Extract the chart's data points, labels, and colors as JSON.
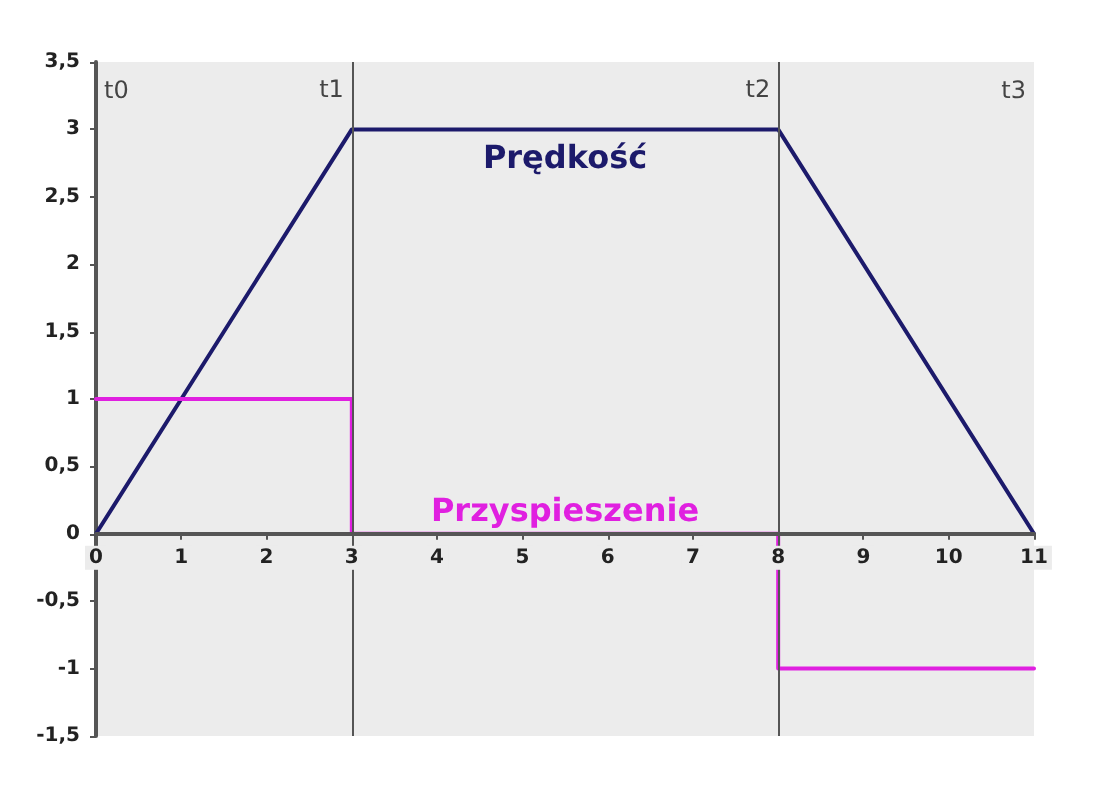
{
  "chart_data": {
    "type": "line",
    "series": [
      {
        "name": "Prędkość",
        "color": "#1c1a6b",
        "x": [
          0,
          3,
          8,
          11
        ],
        "values": [
          0,
          3,
          3,
          0
        ]
      },
      {
        "name": "Przyspieszenie",
        "type": "step",
        "color": "#e020e0",
        "x": [
          0,
          3,
          8,
          11
        ],
        "values": [
          1,
          0,
          -1,
          -1
        ]
      }
    ],
    "xlim": [
      0,
      11
    ],
    "xticks": [
      0,
      1,
      2,
      3,
      4,
      5,
      6,
      7,
      8,
      9,
      10,
      11
    ],
    "ylim": [
      -1.5,
      3.5
    ],
    "yticks": [
      {
        "value": -1.5,
        "label": "-1,5"
      },
      {
        "value": -1,
        "label": "-1"
      },
      {
        "value": -0.5,
        "label": "-0,5"
      },
      0,
      {
        "value": 0.5,
        "label": "0,5"
      },
      1,
      {
        "value": 1.5,
        "label": "1,5"
      },
      2,
      {
        "value": 2.5,
        "label": "2,5"
      },
      3,
      {
        "value": 3.5,
        "label": "3,5"
      }
    ],
    "ref_lines": [
      {
        "axis": "x",
        "value": 3,
        "color": "#555555"
      },
      {
        "axis": "x",
        "value": 8,
        "color": "#555555"
      }
    ],
    "annotations": [
      "t0",
      {
        "text": "t1",
        "x": 3,
        "y": 3.3
      },
      {
        "text": "t2",
        "x": 8,
        "y": 3.3
      },
      "t3"
    ],
    "grid": false,
    "legend": false,
    "marker": "none",
    "line_style": "solid"
  }
}
